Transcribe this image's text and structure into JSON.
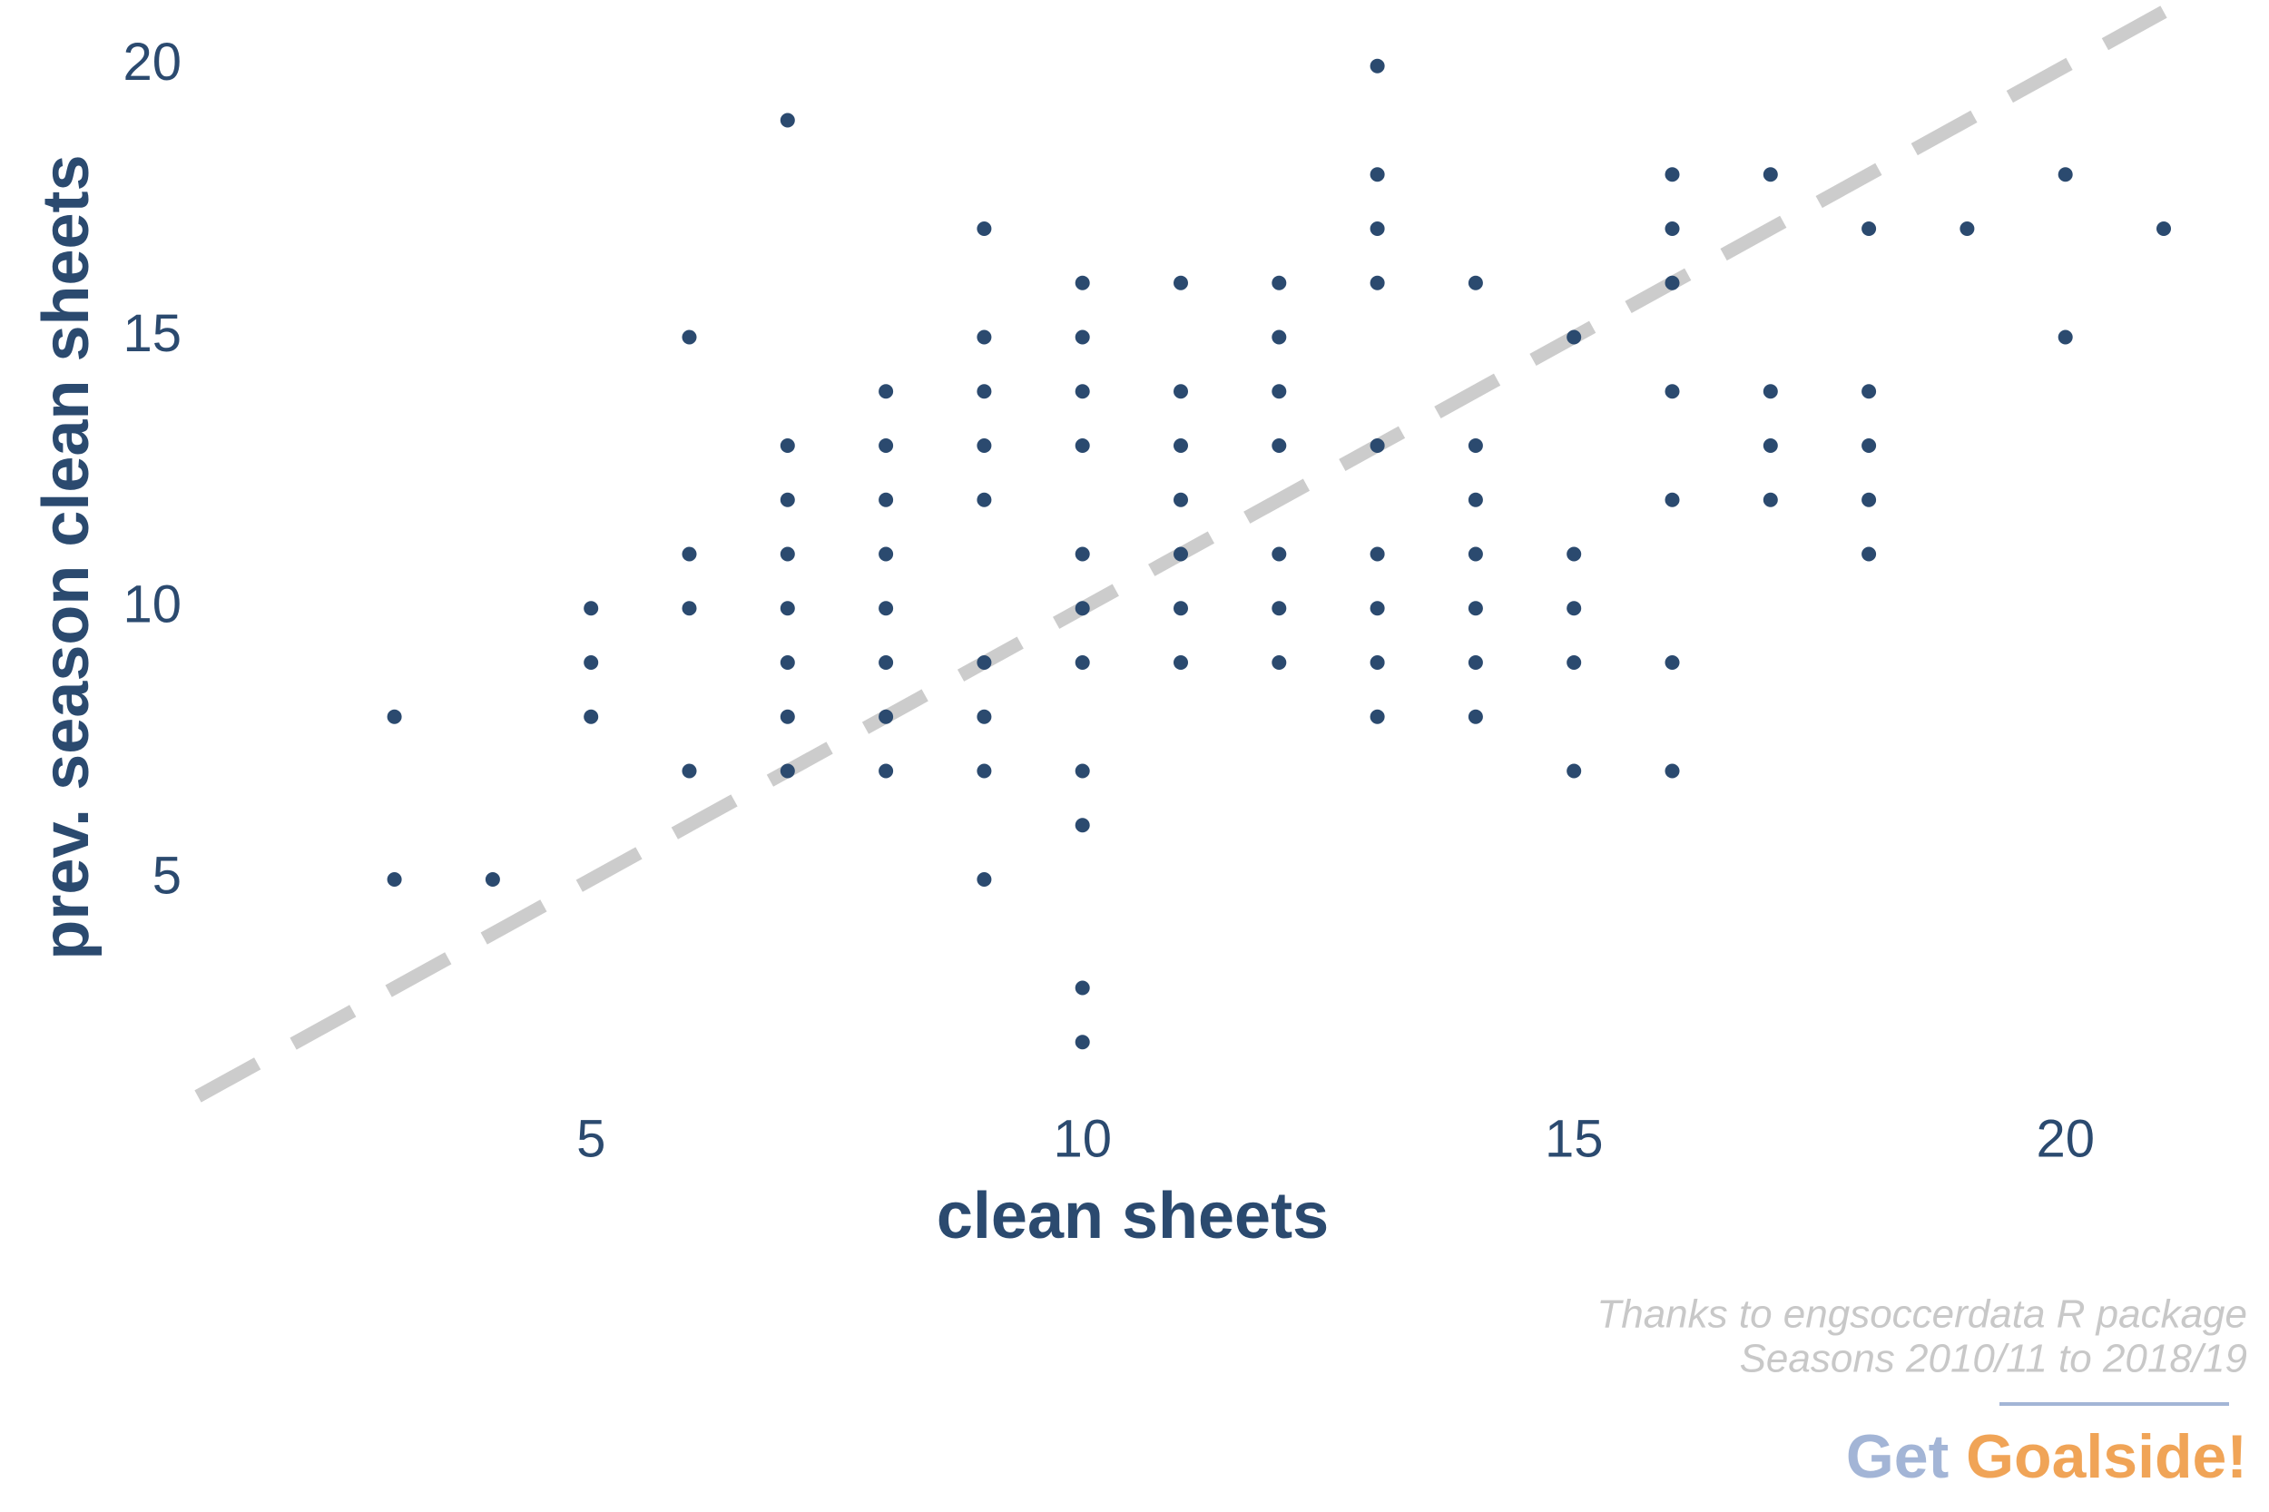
{
  "chart_data": {
    "type": "scatter",
    "x_label": "clean sheets",
    "y_label": "prev. season clean sheets",
    "captions": [
      "Thanks to engsoccerdata R package",
      "Seasons 2010/11 to 2018/19"
    ],
    "brand": [
      "Get",
      "Goalside!"
    ],
    "brand_colors": [
      "#a3b5d6",
      "#f0a457"
    ],
    "xlim": [
      1,
      21
    ],
    "ylim": [
      1,
      21
    ],
    "xticks": [
      5,
      10,
      15,
      20
    ],
    "yticks": [
      5,
      10,
      15,
      20
    ],
    "identity_line": true,
    "identity_line_color": "#cccccc",
    "series": [
      {
        "color": "#2b4a6f",
        "x": [
          3,
          3,
          4,
          5,
          5,
          5,
          6,
          6,
          6,
          6,
          7,
          7,
          7,
          7,
          7,
          7,
          7,
          7,
          8,
          8,
          8,
          8,
          8,
          8,
          8,
          8,
          9,
          9,
          9,
          9,
          9,
          9,
          9,
          9,
          9,
          10,
          10,
          10,
          10,
          10,
          10,
          10,
          10,
          10,
          10,
          10,
          11,
          11,
          11,
          11,
          11,
          11,
          11,
          12,
          12,
          12,
          12,
          12,
          12,
          12,
          13,
          13,
          13,
          13,
          13,
          13,
          13,
          13,
          13,
          14,
          14,
          14,
          14,
          14,
          14,
          14,
          15,
          15,
          15,
          15,
          15,
          16,
          16,
          16,
          16,
          16,
          16,
          16,
          17,
          17,
          17,
          17,
          18,
          18,
          18,
          18,
          18,
          19,
          20,
          20,
          21
        ],
        "values": [
          8,
          5,
          5,
          10,
          9,
          8,
          15,
          11,
          10,
          7,
          19,
          13,
          12,
          11,
          10,
          9,
          8,
          7,
          14,
          13,
          12,
          11,
          10,
          9,
          8,
          7,
          17,
          15,
          14,
          13,
          12,
          9,
          8,
          7,
          5,
          16,
          15,
          14,
          13,
          11,
          10,
          9,
          7,
          6,
          3,
          2,
          16,
          14,
          13,
          12,
          11,
          10,
          9,
          16,
          15,
          14,
          13,
          11,
          10,
          9,
          20,
          18,
          17,
          16,
          13,
          11,
          10,
          9,
          8,
          16,
          13,
          12,
          11,
          10,
          9,
          8,
          15,
          11,
          10,
          9,
          7,
          18,
          17,
          16,
          14,
          12,
          9,
          7,
          18,
          14,
          13,
          12,
          17,
          14,
          13,
          12,
          11,
          17,
          18,
          15,
          17
        ]
      }
    ]
  }
}
